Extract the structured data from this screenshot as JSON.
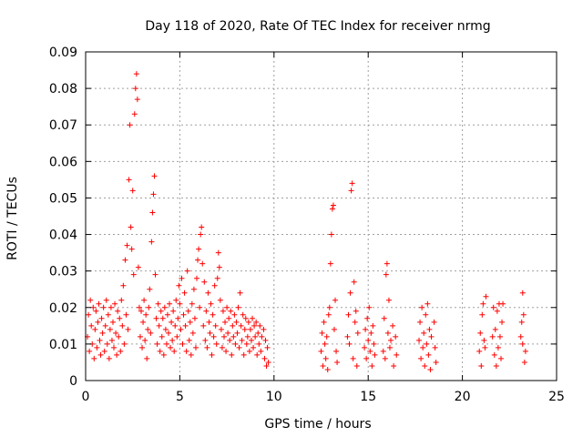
{
  "chart_data": {
    "type": "scatter",
    "title": "Day 118 of 2020, Rate Of TEC Index for receiver nrmg",
    "xlabel": "GPS time / hours",
    "ylabel": "ROTI / TECUs",
    "xlim": [
      0,
      25
    ],
    "ylim": [
      0,
      0.09
    ],
    "x_ticks": [
      0,
      5,
      10,
      15,
      20,
      25
    ],
    "y_ticks": [
      0,
      0.01,
      0.02,
      0.03,
      0.04,
      0.05,
      0.06,
      0.07,
      0.08,
      0.09
    ],
    "x_tick_labels": [
      "0",
      "5",
      "10",
      "15",
      "20",
      "25"
    ],
    "y_tick_labels": [
      "0",
      "0.01",
      "0.02",
      "0.03",
      "0.04",
      "0.05",
      "0.06",
      "0.07",
      "0.08",
      "0.09"
    ],
    "grid": true,
    "marker": "plus",
    "color": "#ff0000",
    "series": [
      {
        "points": [
          [
            0.1,
            0.012
          ],
          [
            0.15,
            0.018
          ],
          [
            0.2,
            0.008
          ],
          [
            0.25,
            0.022
          ],
          [
            0.3,
            0.015
          ],
          [
            0.35,
            0.01
          ],
          [
            0.4,
            0.02
          ],
          [
            0.45,
            0.006
          ],
          [
            0.5,
            0.014
          ],
          [
            0.55,
            0.019
          ],
          [
            0.6,
            0.009
          ],
          [
            0.65,
            0.016
          ],
          [
            0.7,
            0.021
          ],
          [
            0.75,
            0.011
          ],
          [
            0.8,
            0.007
          ],
          [
            0.85,
            0.017
          ],
          [
            0.9,
            0.013
          ],
          [
            0.95,
            0.02
          ],
          [
            1.0,
            0.008
          ],
          [
            1.05,
            0.015
          ],
          [
            1.1,
            0.022
          ],
          [
            1.15,
            0.01
          ],
          [
            1.2,
            0.018
          ],
          [
            1.25,
            0.006
          ],
          [
            1.3,
            0.014
          ],
          [
            1.35,
            0.02
          ],
          [
            1.4,
            0.011
          ],
          [
            1.45,
            0.016
          ],
          [
            1.5,
            0.009
          ],
          [
            1.55,
            0.021
          ],
          [
            1.6,
            0.013
          ],
          [
            1.65,
            0.007
          ],
          [
            1.7,
            0.019
          ],
          [
            1.75,
            0.012
          ],
          [
            1.8,
            0.017
          ],
          [
            1.85,
            0.008
          ],
          [
            1.9,
            0.022
          ],
          [
            1.95,
            0.015
          ],
          [
            2.0,
            0.026
          ],
          [
            2.05,
            0.01
          ],
          [
            2.1,
            0.033
          ],
          [
            2.15,
            0.018
          ],
          [
            2.2,
            0.037
          ],
          [
            2.25,
            0.014
          ],
          [
            2.3,
            0.055
          ],
          [
            2.35,
            0.07
          ],
          [
            2.4,
            0.042
          ],
          [
            2.45,
            0.036
          ],
          [
            2.5,
            0.052
          ],
          [
            2.55,
            0.029
          ],
          [
            2.6,
            0.073
          ],
          [
            2.65,
            0.08
          ],
          [
            2.7,
            0.084
          ],
          [
            2.75,
            0.077
          ],
          [
            2.8,
            0.031
          ],
          [
            2.85,
            0.02
          ],
          [
            2.9,
            0.012
          ],
          [
            2.95,
            0.019
          ],
          [
            3.0,
            0.009
          ],
          [
            3.05,
            0.016
          ],
          [
            3.1,
            0.022
          ],
          [
            3.15,
            0.011
          ],
          [
            3.2,
            0.018
          ],
          [
            3.25,
            0.006
          ],
          [
            3.3,
            0.014
          ],
          [
            3.35,
            0.02
          ],
          [
            3.4,
            0.025
          ],
          [
            3.45,
            0.013
          ],
          [
            3.5,
            0.038
          ],
          [
            3.55,
            0.046
          ],
          [
            3.6,
            0.051
          ],
          [
            3.65,
            0.056
          ],
          [
            3.7,
            0.029
          ],
          [
            3.75,
            0.017
          ],
          [
            3.8,
            0.01
          ],
          [
            3.85,
            0.021
          ],
          [
            3.9,
            0.015
          ],
          [
            3.95,
            0.008
          ],
          [
            4.0,
            0.019
          ],
          [
            4.05,
            0.012
          ],
          [
            4.1,
            0.017
          ],
          [
            4.15,
            0.007
          ],
          [
            4.2,
            0.02
          ],
          [
            4.25,
            0.014
          ],
          [
            4.3,
            0.01
          ],
          [
            4.35,
            0.018
          ],
          [
            4.4,
            0.013
          ],
          [
            4.45,
            0.021
          ],
          [
            4.5,
            0.009
          ],
          [
            4.55,
            0.016
          ],
          [
            4.6,
            0.011
          ],
          [
            4.65,
            0.019
          ],
          [
            4.7,
            0.008
          ],
          [
            4.75,
            0.015
          ],
          [
            4.8,
            0.022
          ],
          [
            4.85,
            0.012
          ],
          [
            4.9,
            0.017
          ],
          [
            4.95,
            0.026
          ],
          [
            5.0,
            0.021
          ],
          [
            5.05,
            0.014
          ],
          [
            5.1,
            0.028
          ],
          [
            5.15,
            0.01
          ],
          [
            5.2,
            0.018
          ],
          [
            5.25,
            0.024
          ],
          [
            5.3,
            0.015
          ],
          [
            5.35,
            0.008
          ],
          [
            5.4,
            0.03
          ],
          [
            5.45,
            0.019
          ],
          [
            5.5,
            0.011
          ],
          [
            5.55,
            0.016
          ],
          [
            5.6,
            0.007
          ],
          [
            5.65,
            0.021
          ],
          [
            5.7,
            0.013
          ],
          [
            5.75,
            0.025
          ],
          [
            5.8,
            0.017
          ],
          [
            5.85,
            0.009
          ],
          [
            5.9,
            0.028
          ],
          [
            5.95,
            0.033
          ],
          [
            6.0,
            0.036
          ],
          [
            6.05,
            0.02
          ],
          [
            6.1,
            0.04
          ],
          [
            6.15,
            0.042
          ],
          [
            6.2,
            0.032
          ],
          [
            6.25,
            0.015
          ],
          [
            6.3,
            0.027
          ],
          [
            6.35,
            0.011
          ],
          [
            6.4,
            0.019
          ],
          [
            6.45,
            0.009
          ],
          [
            6.5,
            0.024
          ],
          [
            6.55,
            0.016
          ],
          [
            6.6,
            0.013
          ],
          [
            6.65,
            0.021
          ],
          [
            6.7,
            0.007
          ],
          [
            6.75,
            0.018
          ],
          [
            6.8,
            0.012
          ],
          [
            6.85,
            0.026
          ],
          [
            6.9,
            0.015
          ],
          [
            6.95,
            0.01
          ],
          [
            7.0,
            0.028
          ],
          [
            7.05,
            0.035
          ],
          [
            7.1,
            0.031
          ],
          [
            7.15,
            0.022
          ],
          [
            7.2,
            0.014
          ],
          [
            7.25,
            0.009
          ],
          [
            7.3,
            0.019
          ],
          [
            7.35,
            0.012
          ],
          [
            7.4,
            0.016
          ],
          [
            7.45,
            0.008
          ],
          [
            7.5,
            0.02
          ],
          [
            7.55,
            0.013
          ],
          [
            7.6,
            0.017
          ],
          [
            7.65,
            0.011
          ],
          [
            7.7,
            0.019
          ],
          [
            7.75,
            0.007
          ],
          [
            7.8,
            0.015
          ],
          [
            7.85,
            0.012
          ],
          [
            7.9,
            0.018
          ],
          [
            7.95,
            0.01
          ],
          [
            8.0,
            0.016
          ],
          [
            8.05,
            0.013
          ],
          [
            8.1,
            0.02
          ],
          [
            8.15,
            0.009
          ],
          [
            8.2,
            0.024
          ],
          [
            8.25,
            0.015
          ],
          [
            8.3,
            0.011
          ],
          [
            8.35,
            0.018
          ],
          [
            8.4,
            0.007
          ],
          [
            8.45,
            0.014
          ],
          [
            8.5,
            0.017
          ],
          [
            8.55,
            0.01
          ],
          [
            8.6,
            0.012
          ],
          [
            8.65,
            0.016
          ],
          [
            8.7,
            0.008
          ],
          [
            8.75,
            0.014
          ],
          [
            8.8,
            0.011
          ],
          [
            8.85,
            0.017
          ],
          [
            8.9,
            0.009
          ],
          [
            8.95,
            0.015
          ],
          [
            9.0,
            0.012
          ],
          [
            9.05,
            0.016
          ],
          [
            9.1,
            0.007
          ],
          [
            9.15,
            0.013
          ],
          [
            9.2,
            0.01
          ],
          [
            9.25,
            0.015
          ],
          [
            9.3,
            0.008
          ],
          [
            9.35,
            0.012
          ],
          [
            9.45,
            0.014
          ],
          [
            9.5,
            0.006
          ],
          [
            9.55,
            0.011
          ],
          [
            9.6,
            0.004
          ],
          [
            9.65,
            0.009
          ],
          [
            9.7,
            0.005
          ],
          [
            12.5,
            0.008
          ],
          [
            12.55,
            0.013
          ],
          [
            12.6,
            0.004
          ],
          [
            12.65,
            0.016
          ],
          [
            12.7,
            0.01
          ],
          [
            12.75,
            0.006
          ],
          [
            12.8,
            0.012
          ],
          [
            12.85,
            0.003
          ],
          [
            12.9,
            0.018
          ],
          [
            12.95,
            0.02
          ],
          [
            13.0,
            0.032
          ],
          [
            13.05,
            0.04
          ],
          [
            13.1,
            0.047
          ],
          [
            13.15,
            0.048
          ],
          [
            13.2,
            0.014
          ],
          [
            13.25,
            0.022
          ],
          [
            13.3,
            0.008
          ],
          [
            13.35,
            0.005
          ],
          [
            13.9,
            0.012
          ],
          [
            13.95,
            0.018
          ],
          [
            14.0,
            0.01
          ],
          [
            14.05,
            0.024
          ],
          [
            14.1,
            0.052
          ],
          [
            14.15,
            0.054
          ],
          [
            14.2,
            0.006
          ],
          [
            14.25,
            0.027
          ],
          [
            14.3,
            0.016
          ],
          [
            14.35,
            0.019
          ],
          [
            14.4,
            0.004
          ],
          [
            14.45,
            0.013
          ],
          [
            14.8,
            0.009
          ],
          [
            14.85,
            0.014
          ],
          [
            14.9,
            0.006
          ],
          [
            14.95,
            0.017
          ],
          [
            15.0,
            0.011
          ],
          [
            15.05,
            0.02
          ],
          [
            15.1,
            0.008
          ],
          [
            15.15,
            0.013
          ],
          [
            15.2,
            0.004
          ],
          [
            15.25,
            0.015
          ],
          [
            15.3,
            0.01
          ],
          [
            15.35,
            0.007
          ],
          [
            15.8,
            0.008
          ],
          [
            15.85,
            0.017
          ],
          [
            15.9,
            0.006
          ],
          [
            15.95,
            0.029
          ],
          [
            16.0,
            0.032
          ],
          [
            16.05,
            0.013
          ],
          [
            16.1,
            0.022
          ],
          [
            16.15,
            0.009
          ],
          [
            16.2,
            0.011
          ],
          [
            16.3,
            0.015
          ],
          [
            16.35,
            0.004
          ],
          [
            16.45,
            0.012
          ],
          [
            16.5,
            0.007
          ],
          [
            17.7,
            0.011
          ],
          [
            17.75,
            0.016
          ],
          [
            17.8,
            0.006
          ],
          [
            17.85,
            0.02
          ],
          [
            17.9,
            0.009
          ],
          [
            17.95,
            0.013
          ],
          [
            18.0,
            0.004
          ],
          [
            18.05,
            0.018
          ],
          [
            18.1,
            0.01
          ],
          [
            18.15,
            0.021
          ],
          [
            18.2,
            0.007
          ],
          [
            18.25,
            0.014
          ],
          [
            18.3,
            0.003
          ],
          [
            18.35,
            0.012
          ],
          [
            18.5,
            0.016
          ],
          [
            18.55,
            0.009
          ],
          [
            18.6,
            0.005
          ],
          [
            20.9,
            0.008
          ],
          [
            20.95,
            0.013
          ],
          [
            21.0,
            0.004
          ],
          [
            21.05,
            0.018
          ],
          [
            21.1,
            0.021
          ],
          [
            21.15,
            0.011
          ],
          [
            21.2,
            0.009
          ],
          [
            21.25,
            0.023
          ],
          [
            21.6,
            0.012
          ],
          [
            21.65,
            0.02
          ],
          [
            21.7,
            0.007
          ],
          [
            21.75,
            0.014
          ],
          [
            21.8,
            0.004
          ],
          [
            21.85,
            0.019
          ],
          [
            21.9,
            0.009
          ],
          [
            21.95,
            0.021
          ],
          [
            22.0,
            0.012
          ],
          [
            22.05,
            0.006
          ],
          [
            22.1,
            0.016
          ],
          [
            22.15,
            0.021
          ],
          [
            23.1,
            0.012
          ],
          [
            23.15,
            0.016
          ],
          [
            23.2,
            0.01
          ],
          [
            23.25,
            0.018
          ],
          [
            23.3,
            0.005
          ],
          [
            23.35,
            0.008
          ],
          [
            23.2,
            0.024
          ]
        ]
      }
    ]
  }
}
